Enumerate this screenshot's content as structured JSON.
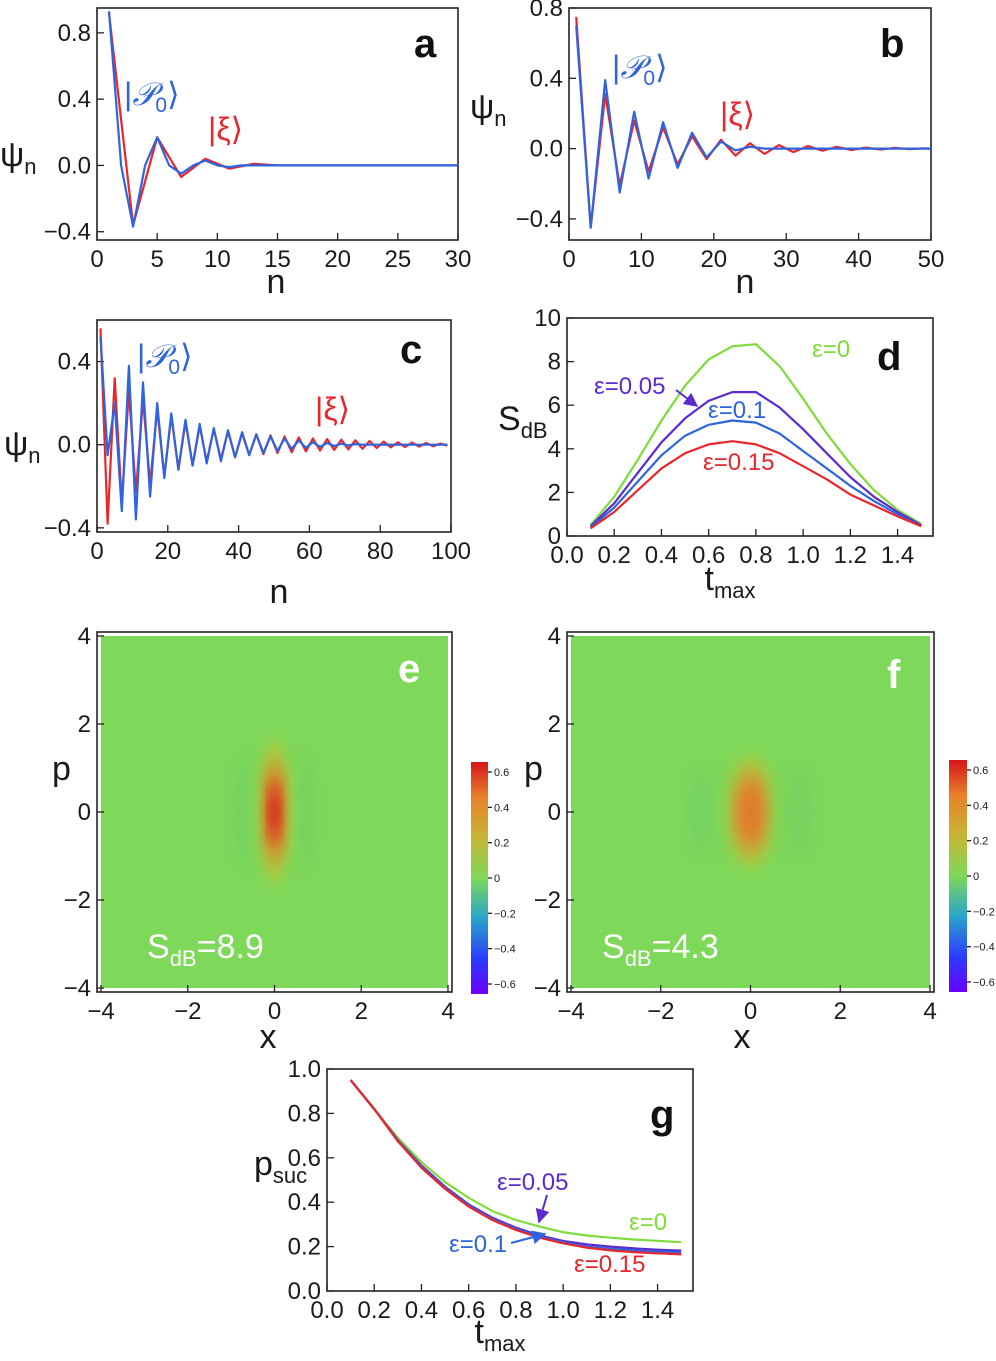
{
  "figure": {
    "colors": {
      "blue": "#2f64e0",
      "red": "#e8262b",
      "green": "#7ddc3a",
      "purple": "#5b2bd0",
      "bg_field": "#7ed85a"
    },
    "texts": {
      "sub_n": "n",
      "sub_dB": "dB",
      "sub_max": "max",
      "sub_suc": "suc",
      "ket_P0": "|𝒫0⟩",
      "ket_xi": "|ξ⟩",
      "ket_P0_main": "𝒫",
      "ket_P0_sub": "0",
      "ket_xi_main": "ξ"
    }
  },
  "chart_data": [
    {
      "panel": "a",
      "type": "line",
      "xlabel": "n",
      "ylabel": "ψ",
      "ylabel_sub": "n",
      "xlim": [
        0,
        30
      ],
      "ylim": [
        -0.45,
        0.95
      ],
      "xticks": [
        0,
        5,
        10,
        15,
        20,
        25,
        30
      ],
      "yticks": [
        -0.4,
        0.0,
        0.4,
        0.8
      ],
      "ytick_labels": [
        "−0.4",
        "0.0",
        "0.4",
        "0.8"
      ],
      "series": [
        {
          "name": "|ξ⟩",
          "color": "red",
          "x": [
            1,
            3,
            5,
            7,
            9,
            11,
            13,
            15,
            17,
            19,
            21,
            23,
            25,
            27,
            29,
            30
          ],
          "y": [
            0.92,
            -0.36,
            0.17,
            -0.07,
            0.04,
            -0.02,
            0.01,
            0.0,
            0.0,
            0.0,
            0.0,
            0.0,
            0.0,
            0.0,
            0.0,
            0.0
          ]
        },
        {
          "name": "|𝒫0⟩",
          "color": "blue",
          "x": [
            1,
            2,
            3,
            4,
            5,
            6,
            7,
            8,
            9,
            10,
            11,
            12,
            13,
            15,
            17,
            20,
            25,
            30
          ],
          "y": [
            0.93,
            0.0,
            -0.37,
            0.0,
            0.17,
            0.0,
            -0.05,
            0.0,
            0.03,
            0.0,
            -0.01,
            0.0,
            0.0,
            0.0,
            0.0,
            0.0,
            0.0,
            0.0
          ]
        }
      ]
    },
    {
      "panel": "b",
      "type": "line",
      "xlabel": "n",
      "ylabel": "ψ",
      "ylabel_sub": "n",
      "xlim": [
        0,
        50
      ],
      "ylim": [
        -0.52,
        0.8
      ],
      "xticks": [
        0,
        10,
        20,
        30,
        40,
        50
      ],
      "yticks": [
        -0.4,
        0.0,
        0.4,
        0.8
      ],
      "ytick_labels": [
        "−0.4",
        "0.0",
        "0.4",
        "0.8"
      ],
      "series": [
        {
          "name": "|ξ⟩",
          "color": "red",
          "x": [
            1,
            3,
            5,
            7,
            9,
            11,
            13,
            15,
            17,
            19,
            21,
            23,
            25,
            27,
            29,
            31,
            33,
            35,
            37,
            39,
            41,
            43,
            45,
            47,
            49,
            50
          ],
          "y": [
            0.75,
            -0.45,
            0.31,
            -0.21,
            0.16,
            -0.13,
            0.12,
            -0.09,
            0.07,
            -0.06,
            0.05,
            -0.04,
            0.03,
            -0.03,
            0.02,
            -0.02,
            0.015,
            -0.012,
            0.01,
            -0.008,
            0.006,
            -0.005,
            0.004,
            -0.003,
            0.002,
            0.0
          ]
        },
        {
          "name": "|𝒫0⟩",
          "color": "blue",
          "x": [
            1,
            3,
            5,
            7,
            9,
            11,
            13,
            15,
            17,
            19,
            21,
            23,
            25,
            27,
            29,
            31,
            33,
            35,
            37,
            39,
            41,
            43,
            45,
            47,
            49,
            50
          ],
          "y": [
            0.7,
            -0.45,
            0.39,
            -0.25,
            0.21,
            -0.17,
            0.15,
            -0.11,
            0.09,
            -0.05,
            0.04,
            -0.01,
            0.01,
            0.0,
            0.0,
            0.0,
            0.0,
            0.0,
            0.0,
            0.0,
            0.0,
            0.0,
            0.0,
            0.0,
            0.0,
            0.0
          ]
        }
      ]
    },
    {
      "panel": "c",
      "type": "line",
      "xlabel": "n",
      "ylabel": "ψ",
      "ylabel_sub": "n",
      "xlim": [
        0,
        100
      ],
      "ylim": [
        -0.42,
        0.6
      ],
      "xticks": [
        0,
        20,
        40,
        60,
        80,
        100
      ],
      "yticks": [
        -0.4,
        0.0,
        0.4
      ],
      "ytick_labels": [
        "−0.4",
        "0.0",
        "0.4"
      ],
      "series": [
        {
          "name": "|ξ⟩",
          "color": "red",
          "x": [
            1,
            3,
            5,
            7,
            9,
            11,
            13,
            15,
            17,
            19,
            21,
            23,
            25,
            27,
            29,
            31,
            33,
            35,
            37,
            39,
            41,
            43,
            45,
            47,
            49,
            51,
            53,
            55,
            57,
            59,
            61,
            63,
            65,
            67,
            69,
            71,
            73,
            75,
            77,
            79,
            81,
            83,
            85,
            87,
            89,
            91,
            93,
            95,
            97,
            99
          ],
          "y": [
            0.56,
            -0.38,
            0.32,
            -0.28,
            0.26,
            -0.23,
            0.22,
            -0.19,
            0.17,
            -0.15,
            0.14,
            -0.12,
            0.11,
            -0.1,
            0.09,
            -0.08,
            0.075,
            -0.07,
            0.065,
            -0.06,
            0.055,
            -0.05,
            0.05,
            -0.045,
            0.045,
            -0.04,
            0.04,
            -0.036,
            0.035,
            -0.032,
            0.03,
            -0.028,
            0.027,
            -0.025,
            0.024,
            -0.022,
            0.021,
            -0.019,
            0.018,
            -0.016,
            0.015,
            -0.013,
            0.012,
            -0.011,
            0.01,
            -0.009,
            0.008,
            -0.007,
            0.006,
            -0.005
          ]
        },
        {
          "name": "|𝒫0⟩",
          "color": "blue",
          "x": [
            1,
            3,
            5,
            7,
            9,
            11,
            13,
            15,
            17,
            19,
            21,
            23,
            25,
            27,
            29,
            31,
            33,
            35,
            37,
            39,
            41,
            43,
            45,
            47,
            49,
            51,
            53,
            55,
            57,
            59,
            61,
            63,
            65,
            67,
            69,
            71,
            73,
            75,
            77,
            79,
            81,
            83,
            85,
            87,
            89,
            91,
            93,
            95,
            97,
            99
          ],
          "y": [
            0.52,
            -0.05,
            0.2,
            -0.32,
            0.38,
            -0.36,
            0.3,
            -0.25,
            0.2,
            -0.16,
            0.15,
            -0.12,
            0.12,
            -0.1,
            0.1,
            -0.09,
            0.08,
            -0.08,
            0.07,
            -0.06,
            0.06,
            -0.05,
            0.05,
            -0.04,
            0.04,
            -0.03,
            0.03,
            -0.02,
            0.02,
            -0.015,
            0.012,
            -0.01,
            0.008,
            -0.006,
            0.005,
            -0.004,
            0.003,
            0.0,
            0.0,
            0.0,
            0.0,
            0.0,
            0.0,
            0.0,
            0.0,
            0.0,
            0.0,
            0.0,
            0.0,
            0.0
          ]
        }
      ]
    },
    {
      "panel": "d",
      "type": "line",
      "xlabel": "t",
      "xlabel_sub": "max",
      "ylabel": "S",
      "ylabel_sub": "dB",
      "xlim": [
        0,
        1.55
      ],
      "ylim": [
        0,
        10
      ],
      "xticks": [
        0.0,
        0.2,
        0.4,
        0.6,
        0.8,
        1.0,
        1.2,
        1.4
      ],
      "xtick_labels": [
        "0.0",
        "0.2",
        "0.4",
        "0.6",
        "0.8",
        "1.0",
        "1.2",
        "1.4"
      ],
      "yticks": [
        0,
        2,
        4,
        6,
        8,
        10
      ],
      "ytick_labels": [
        "0",
        "2",
        "4",
        "6",
        "8",
        "10"
      ],
      "series": [
        {
          "name": "ε=0",
          "color": "green",
          "x": [
            0.1,
            0.2,
            0.3,
            0.4,
            0.5,
            0.6,
            0.7,
            0.8,
            0.9,
            1.0,
            1.1,
            1.2,
            1.3,
            1.4,
            1.5
          ],
          "y": [
            0.5,
            1.8,
            3.5,
            5.3,
            6.9,
            8.1,
            8.7,
            8.8,
            7.8,
            6.3,
            4.7,
            3.3,
            2.1,
            1.2,
            0.55
          ]
        },
        {
          "name": "ε=0.05",
          "color": "purple",
          "x": [
            0.1,
            0.2,
            0.3,
            0.4,
            0.5,
            0.6,
            0.7,
            0.8,
            0.9,
            1.0,
            1.1,
            1.2,
            1.3,
            1.4,
            1.5
          ],
          "y": [
            0.45,
            1.5,
            2.9,
            4.3,
            5.4,
            6.2,
            6.6,
            6.6,
            5.9,
            4.9,
            3.8,
            2.7,
            1.8,
            1.1,
            0.5
          ]
        },
        {
          "name": "ε=0.1",
          "color": "blue",
          "x": [
            0.1,
            0.2,
            0.3,
            0.4,
            0.5,
            0.6,
            0.7,
            0.8,
            0.9,
            1.0,
            1.1,
            1.2,
            1.3,
            1.4,
            1.5
          ],
          "y": [
            0.4,
            1.3,
            2.5,
            3.7,
            4.6,
            5.1,
            5.3,
            5.2,
            4.7,
            3.9,
            3.1,
            2.3,
            1.6,
            1.0,
            0.45
          ]
        },
        {
          "name": "ε=0.15",
          "color": "red",
          "x": [
            0.1,
            0.2,
            0.3,
            0.4,
            0.5,
            0.6,
            0.7,
            0.8,
            0.9,
            1.0,
            1.1,
            1.2,
            1.3,
            1.4,
            1.5
          ],
          "y": [
            0.35,
            1.1,
            2.1,
            3.1,
            3.8,
            4.2,
            4.35,
            4.2,
            3.8,
            3.2,
            2.6,
            1.9,
            1.4,
            0.9,
            0.45
          ]
        }
      ]
    },
    {
      "panel": "e",
      "type": "heatmap",
      "xlabel": "x",
      "ylabel": "p",
      "xlim": [
        -4,
        4
      ],
      "ylim": [
        -4,
        4
      ],
      "xticks": [
        -4,
        -2,
        0,
        2,
        4
      ],
      "xtick_labels": [
        "−4",
        "−2",
        "0",
        "2",
        "4"
      ],
      "yticks": [
        -4,
        -2,
        0,
        2,
        4
      ],
      "ytick_labels": [
        "−4",
        "−2",
        "0",
        "2",
        "4"
      ],
      "annotation": "S_dB=8.9",
      "annotation_main": "S",
      "annotation_value": "=8.9",
      "peak_value": 0.6,
      "sigma_x": 0.18,
      "sigma_p": 1.35,
      "colorbar": {
        "min": -0.6,
        "max": 0.6,
        "ticks": [
          "0.6",
          "0.4",
          "0.2",
          "0",
          "−0.2",
          "−0.4",
          "−0.6"
        ]
      }
    },
    {
      "panel": "f",
      "type": "heatmap",
      "xlabel": "x",
      "ylabel": "p",
      "xlim": [
        -4,
        4
      ],
      "ylim": [
        -4,
        4
      ],
      "xticks": [
        -4,
        -2,
        0,
        2,
        4
      ],
      "xtick_labels": [
        "−4",
        "−2",
        "0",
        "2",
        "4"
      ],
      "yticks": [
        -4,
        -2,
        0,
        2,
        4
      ],
      "ytick_labels": [
        "−4",
        "−2",
        "0",
        "2",
        "4"
      ],
      "annotation": "S_dB=4.3",
      "annotation_main": "S",
      "annotation_value": "=4.3",
      "peak_value": 0.4,
      "sigma_x": 0.26,
      "sigma_p": 1.05,
      "colorbar": {
        "min": -0.6,
        "max": 0.6,
        "ticks": [
          "0.6",
          "0.4",
          "0.2",
          "0",
          "−0.2",
          "−0.4",
          "−0.6"
        ]
      }
    },
    {
      "panel": "g",
      "type": "line",
      "xlabel": "t",
      "xlabel_sub": "max",
      "ylabel": "p",
      "ylabel_sub": "suc",
      "xlim": [
        0,
        1.55
      ],
      "ylim": [
        0,
        1.0
      ],
      "xticks": [
        0.0,
        0.2,
        0.4,
        0.6,
        0.8,
        1.0,
        1.2,
        1.4
      ],
      "xtick_labels": [
        "0.0",
        "0.2",
        "0.4",
        "0.6",
        "0.8",
        "1.0",
        "1.2",
        "1.4"
      ],
      "yticks": [
        0.0,
        0.2,
        0.4,
        0.6,
        0.8,
        1.0
      ],
      "ytick_labels": [
        "0.0",
        "0.2",
        "0.4",
        "0.6",
        "0.8",
        "1.0"
      ],
      "series": [
        {
          "name": "ε=0",
          "color": "green",
          "x": [
            0.1,
            0.2,
            0.3,
            0.4,
            0.5,
            0.6,
            0.7,
            0.8,
            0.9,
            1.0,
            1.1,
            1.2,
            1.3,
            1.4,
            1.5
          ],
          "y": [
            0.95,
            0.82,
            0.69,
            0.58,
            0.49,
            0.42,
            0.36,
            0.32,
            0.29,
            0.265,
            0.25,
            0.24,
            0.232,
            0.226,
            0.22
          ]
        },
        {
          "name": "ε=0.05",
          "color": "purple",
          "x": [
            0.1,
            0.2,
            0.3,
            0.4,
            0.5,
            0.6,
            0.7,
            0.8,
            0.9,
            1.0,
            1.1,
            1.2,
            1.3,
            1.4,
            1.5
          ],
          "y": [
            0.95,
            0.82,
            0.68,
            0.565,
            0.47,
            0.39,
            0.33,
            0.285,
            0.25,
            0.225,
            0.21,
            0.2,
            0.192,
            0.186,
            0.182
          ]
        },
        {
          "name": "ε=0.1",
          "color": "blue",
          "x": [
            0.1,
            0.2,
            0.3,
            0.4,
            0.5,
            0.6,
            0.7,
            0.8,
            0.9,
            1.0,
            1.1,
            1.2,
            1.3,
            1.4,
            1.5
          ],
          "y": [
            0.95,
            0.82,
            0.68,
            0.56,
            0.465,
            0.385,
            0.325,
            0.28,
            0.245,
            0.22,
            0.2,
            0.19,
            0.183,
            0.178,
            0.174
          ]
        },
        {
          "name": "ε=0.15",
          "color": "red",
          "x": [
            0.1,
            0.2,
            0.3,
            0.4,
            0.5,
            0.6,
            0.7,
            0.8,
            0.9,
            1.0,
            1.1,
            1.2,
            1.3,
            1.4,
            1.5
          ],
          "y": [
            0.95,
            0.82,
            0.675,
            0.555,
            0.46,
            0.38,
            0.32,
            0.275,
            0.24,
            0.215,
            0.195,
            0.183,
            0.175,
            0.17,
            0.165
          ]
        }
      ]
    }
  ]
}
